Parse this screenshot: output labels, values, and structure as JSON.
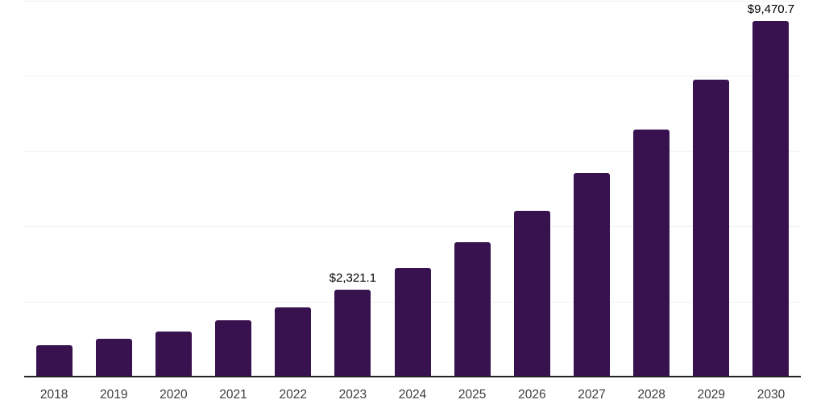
{
  "chart_data": {
    "type": "bar",
    "title": "",
    "xlabel": "",
    "ylabel": "",
    "categories": [
      "2018",
      "2019",
      "2020",
      "2021",
      "2022",
      "2023",
      "2024",
      "2025",
      "2026",
      "2027",
      "2028",
      "2029",
      "2030"
    ],
    "values": [
      830,
      1000,
      1210,
      1490,
      1850,
      2321.1,
      2890,
      3570,
      4410,
      5420,
      6580,
      7910,
      9470.7
    ],
    "point_labels": {
      "2023": "$2,321.1",
      "2030": "$9,470.7"
    },
    "ylim": [
      0,
      10000
    ],
    "gridline_values": [
      2000,
      4000,
      6000,
      8000,
      10000
    ],
    "grid": "on",
    "legend": "none",
    "colors": {
      "bar": "#38124e",
      "gridline": "#f2f2f2",
      "axis_line": "#222222",
      "tick_label": "#3d3d3d",
      "data_label": "#000000",
      "background": "#ffffff"
    }
  }
}
